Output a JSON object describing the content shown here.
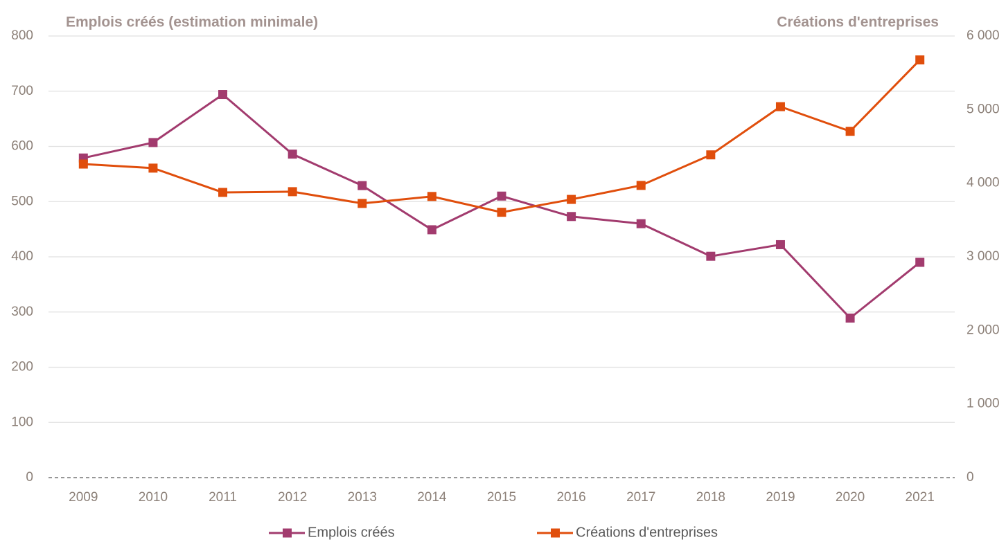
{
  "chart_data": {
    "type": "line",
    "y_title": "Emplois créés (estimation minimale)",
    "y2_title": "Créations d'entreprises",
    "categories": [
      "2009",
      "2010",
      "2011",
      "2012",
      "2013",
      "2014",
      "2015",
      "2016",
      "2017",
      "2018",
      "2019",
      "2020",
      "2021"
    ],
    "series": [
      {
        "name": "Emplois créés",
        "color": "#a23b6e",
        "values": [
          579,
          607,
          694,
          586,
          529,
          449,
          510,
          473,
          460,
          401,
          422,
          289,
          390
        ]
      },
      {
        "name": "Créations d'entreprises",
        "color": "#e04e0c",
        "axis": "y2",
        "values": [
          4260,
          4205,
          3875,
          3885,
          3725,
          3820,
          3605,
          3780,
          3970,
          4385,
          5040,
          4705,
          5675
        ]
      }
    ],
    "ylim": [
      0,
      800
    ],
    "yticks": [
      0,
      100,
      200,
      300,
      400,
      500,
      600,
      700,
      800
    ],
    "y2lim": [
      0,
      6000
    ],
    "y2ticks": [
      0,
      {
        "value": 1000,
        "label": "1 000"
      },
      {
        "value": 2000,
        "label": "2 000"
      },
      {
        "value": 3000,
        "label": "3 000"
      },
      {
        "value": 4000,
        "label": "4 000"
      },
      {
        "value": 5000,
        "label": "5 000"
      },
      {
        "value": 6000,
        "label": "6 000"
      }
    ],
    "grid": true,
    "legend": "bottom"
  }
}
